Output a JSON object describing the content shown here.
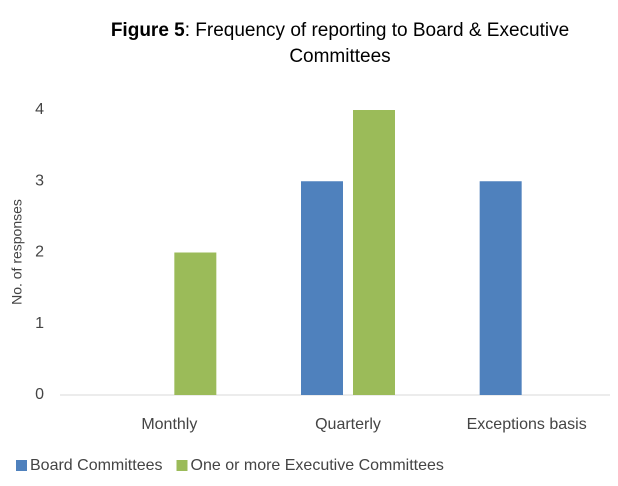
{
  "chart_data": {
    "type": "bar",
    "title": {
      "bold": "Figure 5",
      "text": ": Frequency of reporting to Board & Executive Committees"
    },
    "y_label": "No. of responses",
    "categories": [
      "Monthly",
      "Quarterly",
      "Exceptions basis"
    ],
    "series": [
      {
        "name": "Board Committees",
        "color": "#4f81bd",
        "values": [
          0,
          3,
          3
        ]
      },
      {
        "name": "One or more Executive Committees",
        "color": "#9bbb59",
        "values": [
          2,
          4,
          0
        ]
      }
    ],
    "ylim": [
      0,
      4
    ],
    "yticks": [
      0,
      1,
      2,
      3,
      4
    ],
    "grid": false,
    "legend": "bottom"
  }
}
